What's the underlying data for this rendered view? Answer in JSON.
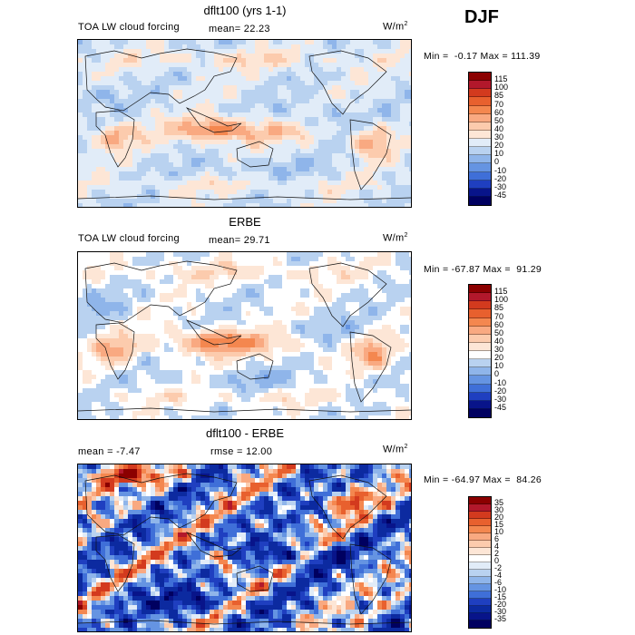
{
  "season": "DJF",
  "panels": [
    {
      "title": "dflt100 (yrs 1-1)",
      "left_label": "TOA LW cloud forcing",
      "mid_label": "mean=  22.23",
      "unit": "W/m",
      "unit_exp": "2",
      "minmax": "Min =  -0.17 Max = 111.39",
      "colorbar_labels": [
        "115",
        "100",
        "85",
        "70",
        "60",
        "50",
        "40",
        "30",
        "20",
        "10",
        "0",
        "-10",
        "-20",
        "-30",
        "-45"
      ],
      "colorbar_colors": [
        "#8b0000",
        "#b2182b",
        "#d33a1e",
        "#e8602e",
        "#f4874f",
        "#f9a981",
        "#fccbad",
        "#fde6d6",
        "#e1ecf8",
        "#b9d2f0",
        "#8fb5ea",
        "#6594e2",
        "#3f6fd8",
        "#1f3fc0",
        "#08148a",
        "#000060"
      ],
      "field_type": "forcing"
    },
    {
      "title": "ERBE",
      "left_label": "TOA LW cloud forcing",
      "mid_label": "mean=  29.71",
      "unit": "W/m",
      "unit_exp": "2",
      "minmax": "Min = -67.87 Max =  91.29",
      "colorbar_labels": [
        "115",
        "100",
        "85",
        "70",
        "60",
        "50",
        "40",
        "30",
        "20",
        "10",
        "0",
        "-10",
        "-20",
        "-30",
        "-45"
      ],
      "colorbar_colors": [
        "#8b0000",
        "#b2182b",
        "#d33a1e",
        "#e8602e",
        "#f4874f",
        "#f9a981",
        "#fccbad",
        "#fde6d6",
        "#ffffff",
        "#b9d2f0",
        "#8fb5ea",
        "#6594e2",
        "#3f6fd8",
        "#1f3fc0",
        "#08148a",
        "#000060"
      ],
      "field_type": "forcing"
    },
    {
      "title": "dflt100 - ERBE",
      "left_label": "mean =  -7.47",
      "mid_label": "rmse =  12.00",
      "unit": "W/m",
      "unit_exp": "2",
      "minmax": "Min = -64.97 Max =  84.26",
      "colorbar_labels": [
        "35",
        "30",
        "20",
        "15",
        "10",
        "6",
        "4",
        "2",
        "0",
        "-2",
        "-4",
        "-6",
        "-10",
        "-15",
        "-20",
        "-30",
        "-35"
      ],
      "colorbar_colors": [
        "#8b0000",
        "#b2182b",
        "#d33a1e",
        "#e8602e",
        "#f4874f",
        "#f9a981",
        "#fccbad",
        "#fde6d6",
        "#ffffff",
        "#e1ecf8",
        "#b9d2f0",
        "#8fb5ea",
        "#6594e2",
        "#3f6fd8",
        "#1f3fc0",
        "#0c2aa0",
        "#08148a",
        "#000060"
      ],
      "field_type": "difference"
    }
  ]
}
